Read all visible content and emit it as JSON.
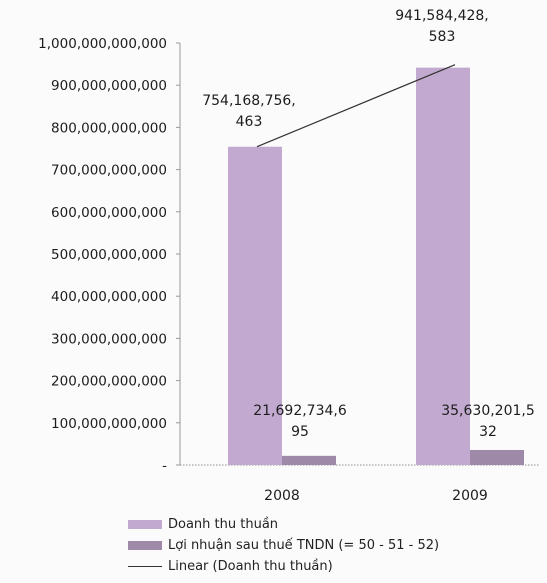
{
  "chart_data": {
    "type": "bar",
    "categories": [
      "2008",
      "2009"
    ],
    "series": [
      {
        "name": "Doanh thu thuần",
        "values": [
          754168756463,
          941584428583
        ],
        "color": "#c2a9cf"
      },
      {
        "name": "Lợi nhuận sau thuế TNDN (= 50 - 51 - 52)",
        "values": [
          21692734695,
          35630201532
        ],
        "color": "#9e8aa8"
      }
    ],
    "trendline": {
      "name": "Linear (Doanh thu thuần)",
      "series": 0,
      "type": "linear"
    },
    "data_labels": [
      [
        "754,168,756,",
        "463"
      ],
      [
        "941,584,428,",
        "583"
      ],
      [
        "21,692,734,6",
        "95"
      ],
      [
        "35,630,201,5",
        "32"
      ]
    ],
    "yticks": [
      "1,000,000,000,000",
      "900,000,000,000",
      "800,000,000,000",
      "700,000,000,000",
      "600,000,000,000",
      "500,000,000,000",
      "400,000,000,000",
      "300,000,000,000",
      "200,000,000,000",
      "100,000,000,000",
      "-"
    ],
    "ylim": [
      0,
      1000000000000
    ],
    "legend_position": "bottom",
    "grid": false
  }
}
